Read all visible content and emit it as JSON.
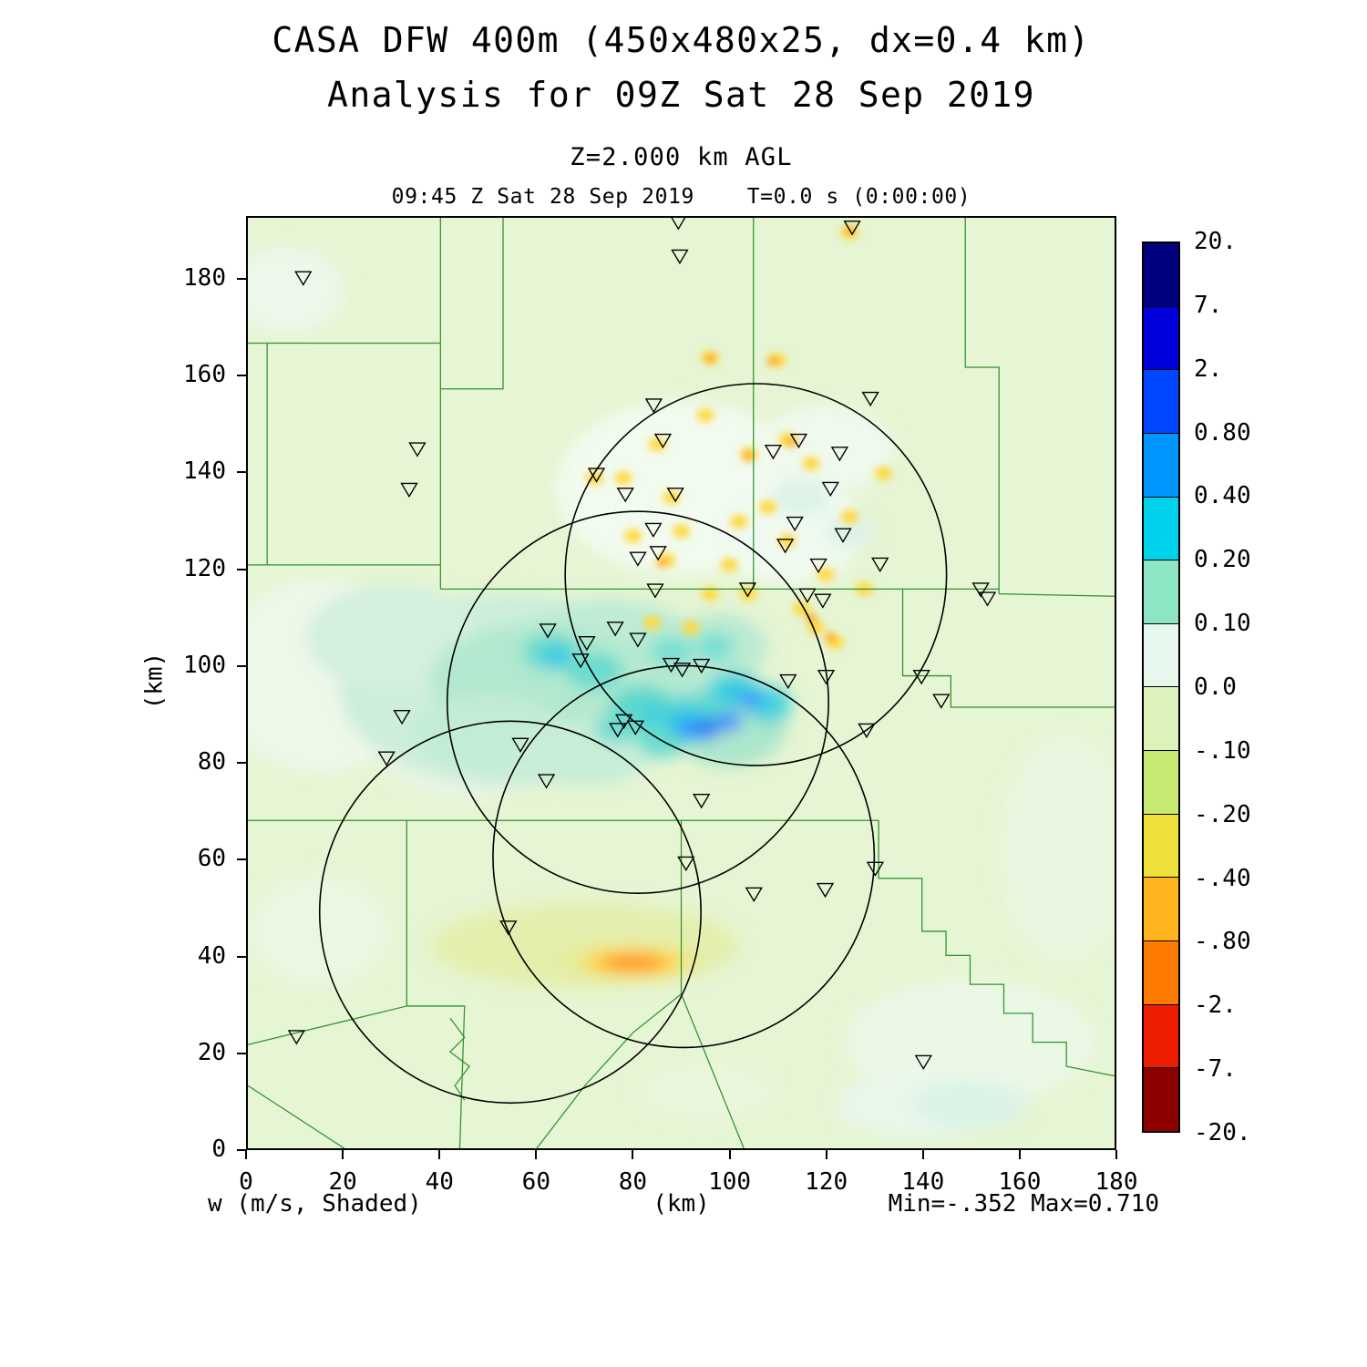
{
  "titles": {
    "main": "CASA DFW 400m (450x480x25, dx=0.4 km)",
    "analysis": "Analysis for 09Z Sat 28 Sep 2019",
    "level": "Z=2.000 km AGL",
    "valid_time": "09:45 Z Sat 28 Sep 2019    T=0.0 s (0:00:00)"
  },
  "axes": {
    "x_label": "(km)",
    "y_label": "(km)",
    "x_ticks": [
      0,
      20,
      40,
      60,
      80,
      100,
      120,
      140,
      160,
      180
    ],
    "y_ticks": [
      0,
      20,
      40,
      60,
      80,
      100,
      120,
      140,
      160,
      180
    ],
    "x_range": [
      0,
      180
    ],
    "y_range": [
      0,
      193
    ]
  },
  "footer": {
    "variable": "w (m/s, Shaded)",
    "min_max": "Min=-.352 Max=0.710"
  },
  "colorbar": {
    "labels": [
      "20.",
      "7.",
      "2.",
      "0.80",
      "0.40",
      "0.20",
      "0.10",
      "0.0",
      "-.10",
      "-.20",
      "-.40",
      "-.80",
      "-2.",
      "-7.",
      "-20."
    ],
    "colors": [
      "#000080",
      "#0000dc",
      "#0048ff",
      "#0096ff",
      "#00d2ec",
      "#8ce6c3",
      "#e6f7ee",
      "#ddf2bb",
      "#c6e972",
      "#f0e03c",
      "#ffb41e",
      "#ff7a00",
      "#ee1c00",
      "#8c0000"
    ]
  },
  "chart_data": {
    "type": "heatmap",
    "title": "CASA DFW 400m (450x480x25, dx=0.4 km)",
    "subtitle": "Analysis for 09Z Sat 28 Sep 2019",
    "variable": "w",
    "units": "m/s",
    "shading": "Shaded",
    "z_level_km": 2.0,
    "grid": "450x480x25",
    "dx_km": 0.4,
    "valid": "09:45 Z Sat 28 Sep 2019",
    "forecast_time": "T=0.0 s (0:00:00)",
    "min": -0.352,
    "max": 0.71,
    "xlim": [
      0,
      180
    ],
    "ylim": [
      0,
      193
    ],
    "contour_levels": [
      -20,
      -7,
      -2,
      -0.8,
      -0.4,
      -0.2,
      -0.1,
      0.0,
      0.1,
      0.2,
      0.4,
      0.8,
      2,
      7,
      20
    ],
    "radar_circles": [
      {
        "cx": 105.5,
        "cy": 119.0,
        "r": 39.6
      },
      {
        "cx": 81.0,
        "cy": 92.5,
        "r": 39.6
      },
      {
        "cx": 54.5,
        "cy": 49.0,
        "r": 39.6
      },
      {
        "cx": 90.5,
        "cy": 60.5,
        "r": 39.6
      }
    ],
    "stations": [
      [
        89.4,
        192.3
      ],
      [
        89.7,
        185.2
      ],
      [
        125.5,
        191.2
      ],
      [
        11.5,
        180.7
      ],
      [
        84.3,
        154.3
      ],
      [
        129.3,
        155.7
      ],
      [
        35.2,
        145.2
      ],
      [
        86.2,
        147.0
      ],
      [
        109.1,
        144.7
      ],
      [
        114.4,
        147.0
      ],
      [
        122.9,
        144.3
      ],
      [
        33.5,
        136.8
      ],
      [
        72.4,
        139.9
      ],
      [
        78.4,
        135.8
      ],
      [
        88.8,
        135.8
      ],
      [
        121.0,
        137.0
      ],
      [
        113.6,
        129.8
      ],
      [
        84.2,
        128.5
      ],
      [
        111.6,
        125.2
      ],
      [
        123.6,
        127.4
      ],
      [
        85.2,
        123.7
      ],
      [
        81.0,
        122.5
      ],
      [
        131.3,
        121.3
      ],
      [
        118.5,
        121.1
      ],
      [
        84.6,
        115.9
      ],
      [
        103.8,
        116.1
      ],
      [
        152.2,
        116.1
      ],
      [
        153.6,
        114.2
      ],
      [
        116.2,
        114.9
      ],
      [
        119.4,
        113.8
      ],
      [
        62.3,
        107.6
      ],
      [
        76.3,
        108.0
      ],
      [
        70.4,
        105.0
      ],
      [
        81.0,
        105.7
      ],
      [
        87.9,
        100.5
      ],
      [
        90.2,
        99.5
      ],
      [
        94.2,
        100.3
      ],
      [
        69.1,
        101.4
      ],
      [
        112.2,
        97.1
      ],
      [
        120.1,
        98.0
      ],
      [
        139.9,
        98.0
      ],
      [
        144.0,
        93.0
      ],
      [
        128.5,
        86.9
      ],
      [
        32.0,
        89.7
      ],
      [
        56.6,
        83.9
      ],
      [
        78.1,
        88.8
      ],
      [
        80.5,
        87.5
      ],
      [
        76.8,
        87.0
      ],
      [
        28.8,
        81.1
      ],
      [
        62.0,
        76.4
      ],
      [
        94.2,
        72.3
      ],
      [
        91.0,
        59.3
      ],
      [
        130.3,
        58.2
      ],
      [
        105.1,
        52.9
      ],
      [
        119.9,
        53.8
      ],
      [
        54.1,
        46.0
      ],
      [
        140.3,
        18.1
      ],
      [
        10.1,
        23.3
      ]
    ],
    "county_lines": [
      [
        [
          0,
          167
        ],
        [
          40,
          167
        ]
      ],
      [
        [
          40,
          193
        ],
        [
          40,
          116
        ]
      ],
      [
        [
          4,
          167
        ],
        [
          4,
          121
        ]
      ],
      [
        [
          0,
          121
        ],
        [
          40,
          121
        ]
      ],
      [
        [
          53,
          193
        ],
        [
          53,
          157.5
        ],
        [
          40,
          157.5
        ]
      ],
      [
        [
          105,
          193
        ],
        [
          105,
          116
        ]
      ],
      [
        [
          40,
          116
        ],
        [
          156,
          116
        ]
      ],
      [
        [
          149,
          193
        ],
        [
          149,
          162
        ],
        [
          156,
          162
        ],
        [
          156,
          115
        ]
      ],
      [
        [
          156,
          115
        ],
        [
          180,
          114.5
        ]
      ],
      [
        [
          0,
          68
        ],
        [
          131,
          68
        ]
      ],
      [
        [
          33,
          68
        ],
        [
          33,
          29.5
        ],
        [
          45,
          29.5
        ],
        [
          44,
          0
        ]
      ],
      [
        [
          0,
          21.5
        ],
        [
          33,
          29.5
        ]
      ],
      [
        [
          0,
          13
        ],
        [
          20,
          0
        ]
      ],
      [
        [
          90,
          68
        ],
        [
          90,
          32
        ],
        [
          103,
          0
        ]
      ],
      [
        [
          60,
          0
        ],
        [
          70,
          13
        ],
        [
          80,
          24
        ],
        [
          90,
          32
        ]
      ],
      [
        [
          131,
          68
        ],
        [
          131,
          56
        ],
        [
          140,
          56
        ],
        [
          140,
          45
        ],
        [
          145,
          45
        ],
        [
          145,
          40
        ],
        [
          150,
          40
        ],
        [
          150,
          34
        ],
        [
          157,
          34
        ],
        [
          157,
          28
        ],
        [
          163,
          28
        ],
        [
          163,
          22
        ],
        [
          170,
          22
        ],
        [
          170,
          17
        ],
        [
          180,
          15
        ]
      ],
      [
        [
          136,
          116
        ],
        [
          136,
          98
        ],
        [
          146,
          98
        ],
        [
          146,
          91.5
        ],
        [
          180,
          91.5
        ]
      ],
      [
        [
          42,
          27
        ],
        [
          45,
          23
        ],
        [
          42,
          20
        ],
        [
          46,
          17
        ],
        [
          43,
          13
        ],
        [
          45,
          10
        ]
      ]
    ],
    "field": {
      "base_color": "#e6f5d3",
      "county_line_color": "#2f942f",
      "circle_color": "#000000",
      "blobs": [
        [
          15,
          98,
          22,
          20,
          "#eef8e9"
        ],
        [
          44,
          82,
          16,
          10,
          "#e9f6e3"
        ],
        [
          8,
          178,
          12,
          9,
          "#edf8ea"
        ],
        [
          150,
          22,
          26,
          13,
          "#ecf8e6"
        ],
        [
          170,
          62,
          14,
          24,
          "#eaf6df"
        ],
        [
          90,
          137,
          26,
          18,
          "#f2fbef"
        ],
        [
          112,
          128,
          16,
          11,
          "#f1faf0"
        ],
        [
          120,
          145,
          14,
          9,
          "#f0f9ee"
        ],
        [
          140,
          9,
          18,
          7,
          "#e9f7ea"
        ],
        [
          95,
          12,
          14,
          6,
          "#eaf6dd"
        ],
        [
          15,
          45,
          15,
          12,
          "#ebf7e0"
        ],
        [
          70,
          42,
          32,
          9,
          "#e4efae"
        ],
        [
          150,
          9,
          12,
          5,
          "#daf3e7"
        ],
        [
          55,
          95,
          36,
          20,
          "#cdeeda"
        ],
        [
          30,
          106,
          18,
          11,
          "#d4f0de"
        ],
        [
          75,
          100,
          22,
          14,
          "#bfecd4"
        ],
        [
          60,
          97,
          22,
          12,
          "#b2e8cf"
        ],
        [
          88,
          96,
          16,
          12,
          "#b5e9d1"
        ],
        [
          50,
          86,
          16,
          8,
          "#c2ecd6"
        ],
        [
          98,
          104,
          10,
          7,
          "#bcead2"
        ],
        [
          70,
          82,
          14,
          7,
          "#c8edd8"
        ],
        [
          100,
          88,
          12,
          9,
          "#ace6cc"
        ],
        [
          115,
          135,
          6,
          4,
          "#dcf3e8"
        ],
        [
          125,
          128,
          5,
          3.5,
          "#dcf3e8"
        ],
        [
          63,
          103,
          6,
          4,
          "#6cdcce"
        ],
        [
          72,
          99,
          6,
          4,
          "#6cdcce"
        ],
        [
          82,
          91,
          7,
          5,
          "#5fd8cb"
        ],
        [
          92,
          89,
          7,
          5,
          "#55d5d2"
        ],
        [
          101,
          95,
          6,
          4,
          "#5cd8d5"
        ],
        [
          108,
          92,
          5,
          4,
          "#5cd8d5"
        ],
        [
          88,
          103,
          4.5,
          3,
          "#74dfd2"
        ],
        [
          97,
          104,
          4,
          3,
          "#74dfd2"
        ],
        [
          77,
          87,
          5,
          3,
          "#6cdcce"
        ],
        [
          86,
          84,
          5,
          3,
          "#6cdcce"
        ],
        [
          64,
          102,
          3,
          2,
          "#2ec8e4"
        ],
        [
          91,
          88,
          4,
          3,
          "#2ec8e4"
        ],
        [
          101,
          94.5,
          3.5,
          2.5,
          "#2ec8e4"
        ],
        [
          108,
          92.5,
          3,
          2,
          "#35cce6"
        ],
        [
          84,
          90,
          3,
          2,
          "#3dcfe0"
        ],
        [
          95,
          87,
          3,
          2.2,
          "#2e86ff"
        ],
        [
          100,
          88.5,
          2.6,
          2,
          "#2e86ff"
        ],
        [
          104.5,
          93,
          2.2,
          1.8,
          "#3c90ff"
        ],
        [
          91,
          87,
          2,
          1.6,
          "#2e86ff"
        ],
        [
          96,
          87,
          1.4,
          1.1,
          "#0a4ce6"
        ],
        [
          79,
          39,
          16,
          4.5,
          "#e6ec9e"
        ],
        [
          80,
          38.5,
          11,
          2.8,
          "#ffd83c"
        ],
        [
          80,
          38.5,
          7,
          1.6,
          "#ff8c1a"
        ]
      ],
      "yellow_color": "#ffd83c",
      "yellow_specks": [
        [
          78,
          139
        ],
        [
          85,
          146
        ],
        [
          95,
          152
        ],
        [
          104,
          144
        ],
        [
          112,
          147
        ],
        [
          117,
          142
        ],
        [
          90,
          128
        ],
        [
          87,
          122
        ],
        [
          100,
          121
        ],
        [
          96,
          115
        ],
        [
          104,
          115
        ],
        [
          115,
          112
        ],
        [
          118,
          108
        ],
        [
          122,
          105
        ],
        [
          108,
          133
        ],
        [
          125,
          131
        ],
        [
          132,
          140
        ],
        [
          96,
          164
        ],
        [
          110,
          163.5
        ],
        [
          72,
          139
        ],
        [
          80,
          127
        ],
        [
          88,
          135
        ],
        [
          102,
          130
        ],
        [
          112,
          126
        ],
        [
          120,
          119
        ],
        [
          128,
          116
        ],
        [
          84,
          109
        ],
        [
          92,
          108
        ],
        [
          125,
          190
        ]
      ],
      "orange_color": "#ff9e00",
      "orange_specks": [
        [
          86,
          121.5
        ],
        [
          117,
          110
        ],
        [
          121,
          106
        ],
        [
          96,
          163.8
        ],
        [
          109,
          163.3
        ],
        [
          104,
          143.5
        ],
        [
          113,
          146.5
        ],
        [
          125,
          190.3
        ]
      ]
    }
  }
}
